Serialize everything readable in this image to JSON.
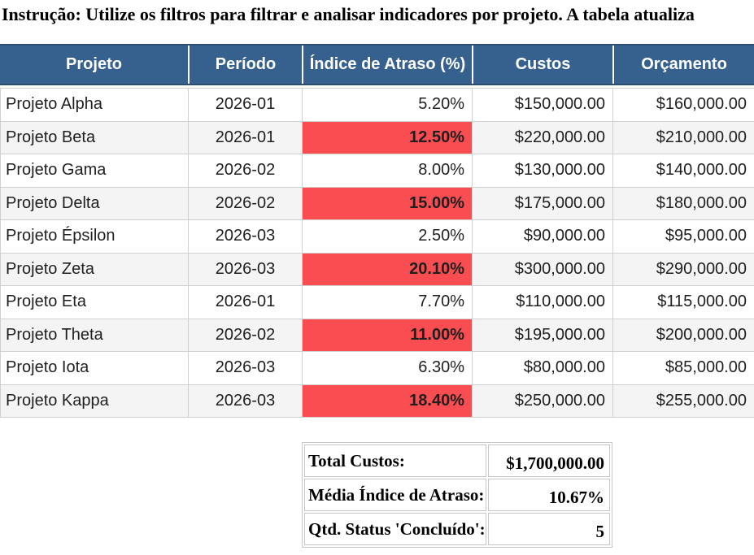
{
  "instruction": "Instrução: Utilize os filtros para filtrar e analisar indicadores por projeto. A tabela atualiza",
  "colors": {
    "header_bg": "#36618F",
    "header_edge": "#2C4E72",
    "header_text": "#FFFFFF",
    "alert_bg": "#FA4D51",
    "alert_text": "#FFFFFF",
    "row_alt_bg": "#F4F4F4",
    "grid_border": "#D0D0D0",
    "outer_border": "#A6A6A6",
    "text": "#1F1F1F",
    "instruction_text": "#000000"
  },
  "table": {
    "columns": [
      {
        "key": "projeto",
        "label": "Projeto"
      },
      {
        "key": "periodo",
        "label": "Período"
      },
      {
        "key": "indice",
        "label": "Índice de Atraso (%)"
      },
      {
        "key": "custos",
        "label": "Custos"
      },
      {
        "key": "orcamento",
        "label": "Orçamento"
      }
    ],
    "rows": [
      {
        "projeto": "Projeto Alpha",
        "periodo": "2026-01",
        "indice": "5.20%",
        "alert": false,
        "custos": "$150,000.00",
        "orcamento": "$160,000.00"
      },
      {
        "projeto": "Projeto Beta",
        "periodo": "2026-01",
        "indice": "12.50%",
        "alert": true,
        "custos": "$220,000.00",
        "orcamento": "$210,000.00"
      },
      {
        "projeto": "Projeto Gama",
        "periodo": "2026-02",
        "indice": "8.00%",
        "alert": false,
        "custos": "$130,000.00",
        "orcamento": "$140,000.00"
      },
      {
        "projeto": "Projeto Delta",
        "periodo": "2026-02",
        "indice": "15.00%",
        "alert": true,
        "custos": "$175,000.00",
        "orcamento": "$180,000.00"
      },
      {
        "projeto": "Projeto Épsilon",
        "periodo": "2026-03",
        "indice": "2.50%",
        "alert": false,
        "custos": "$90,000.00",
        "orcamento": "$95,000.00"
      },
      {
        "projeto": "Projeto Zeta",
        "periodo": "2026-03",
        "indice": "20.10%",
        "alert": true,
        "custos": "$300,000.00",
        "orcamento": "$290,000.00"
      },
      {
        "projeto": "Projeto Eta",
        "periodo": "2026-01",
        "indice": "7.70%",
        "alert": false,
        "custos": "$110,000.00",
        "orcamento": "$115,000.00"
      },
      {
        "projeto": "Projeto Theta",
        "periodo": "2026-02",
        "indice": "11.00%",
        "alert": true,
        "custos": "$195,000.00",
        "orcamento": "$200,000.00"
      },
      {
        "projeto": "Projeto Iota",
        "periodo": "2026-03",
        "indice": "6.30%",
        "alert": false,
        "custos": "$80,000.00",
        "orcamento": "$85,000.00"
      },
      {
        "projeto": "Projeto Kappa",
        "periodo": "2026-03",
        "indice": "18.40%",
        "alert": true,
        "custos": "$250,000.00",
        "orcamento": "$255,000.00"
      }
    ]
  },
  "summary": {
    "rows": [
      {
        "label": "Total Custos:",
        "value": "$1,700,000.00"
      },
      {
        "label": "Média Índice de Atraso:",
        "value": "10.67%"
      },
      {
        "label": "Qtd. Status 'Concluído':",
        "value": "5"
      }
    ]
  }
}
